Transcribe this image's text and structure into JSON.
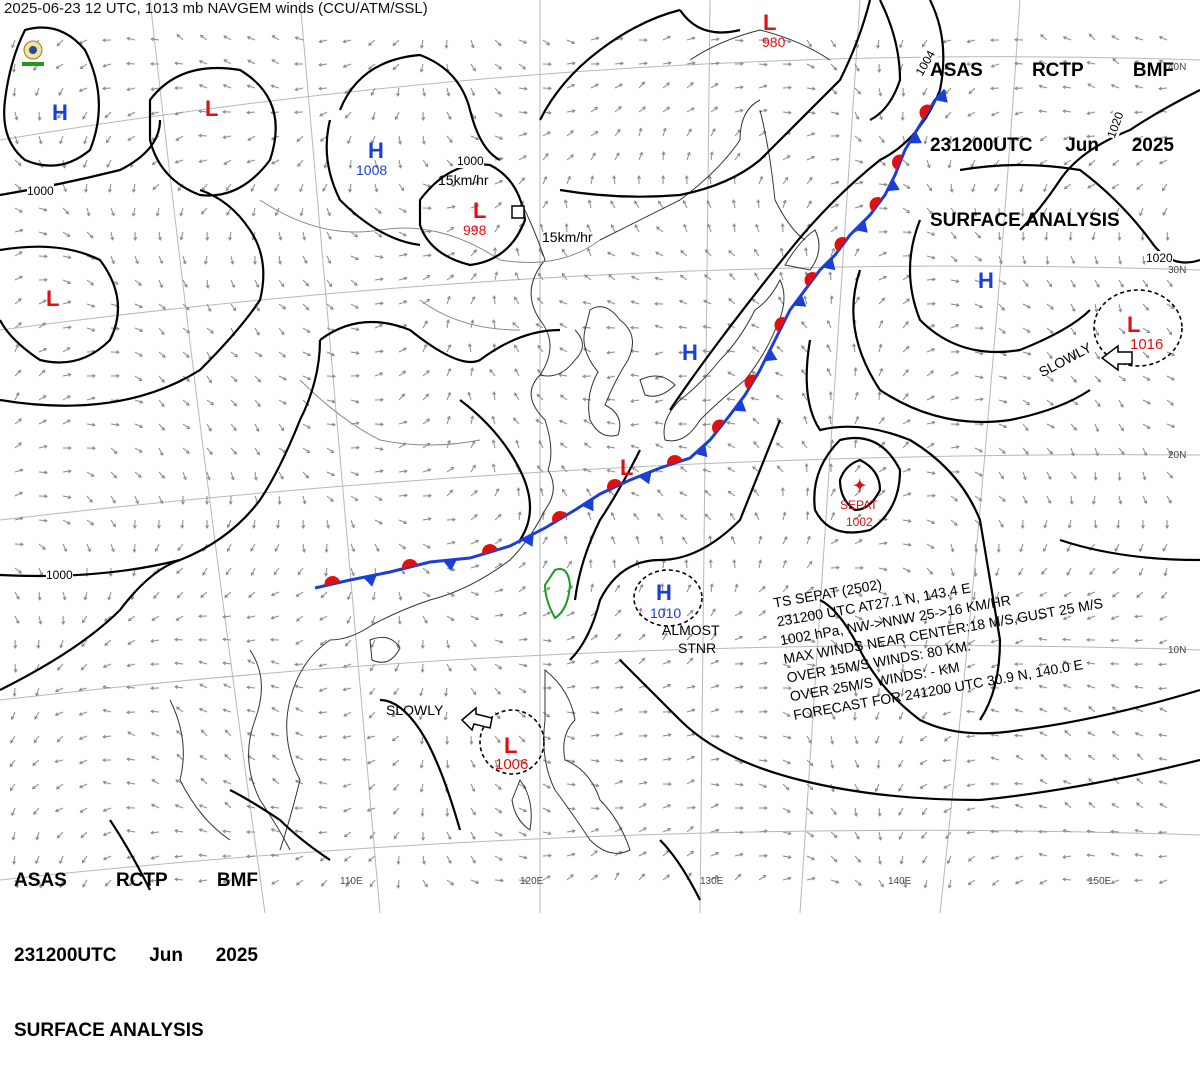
{
  "caption": "2025-06-23 12 UTC, 1013 mb NAVGEM winds (CCU/ATM/SSL)",
  "title_block": {
    "line1": [
      "ASAS",
      "RCTP",
      "BMF"
    ],
    "line2": [
      "231200UTC",
      "Jun",
      "2025"
    ],
    "line3": "SURFACE ANALYSIS"
  },
  "pressure_systems": [
    {
      "type": "H",
      "value": "",
      "color": "#1a3fd6"
    },
    {
      "type": "L",
      "value": "",
      "color": "#e01010"
    },
    {
      "type": "H",
      "value": "1008",
      "color": "#1a3fd6"
    },
    {
      "type": "L",
      "value": "998",
      "color": "#e01010"
    },
    {
      "type": "L",
      "value": "980",
      "color": "#e01010"
    },
    {
      "type": "L",
      "value": "",
      "color": "#e01010"
    },
    {
      "type": "H",
      "value": "",
      "color": "#1a3fd6"
    },
    {
      "type": "L",
      "value": "",
      "color": "#e01010"
    },
    {
      "type": "H",
      "value": "",
      "color": "#1a3fd6"
    },
    {
      "type": "L",
      "value": "1016",
      "color": "#e01010"
    },
    {
      "type": "H",
      "value": "1010",
      "color": "#1a3fd6"
    },
    {
      "type": "L",
      "value": "1006",
      "color": "#e01010"
    }
  ],
  "isobar_labels": [
    "1000",
    "1000",
    "1000",
    "1004",
    "1020",
    "1020"
  ],
  "storm": {
    "name": "SEPAT",
    "pressure": "1002",
    "info": [
      "TS  SEPAT  (2502)",
      "231200 UTC  AT27.1 N, 143.4 E",
      "1002 hPa, NW->NNW  25->16 KM/HR",
      "MAX WINDS NEAR CENTER:18 M/S,GUST 25 M/S",
      "OVER 15M/S WINDS: 80 KM.",
      "OVER 25M/S WINDS: - KM",
      "FORECAST FOR 241200 UTC 30.9 N, 140.0 E"
    ]
  },
  "motion_labels": {
    "low_mid": "15km/hr",
    "low_east": "15km/hr",
    "slowly_ne": "SLOWLY",
    "almost_stnr": [
      "ALMOST",
      "STNR"
    ],
    "slowly_sw": "SLOWLY"
  },
  "lon_labels": [
    "110E",
    "120E",
    "130E",
    "140E",
    "150E"
  ],
  "lat_labels": [
    "40N",
    "30N",
    "20N",
    "10N"
  ],
  "colors": {
    "high": "#1a3fd6",
    "low": "#e01010",
    "cold_front": "#1a3fd6",
    "warm_front": "#e01010",
    "isobar": "#000000",
    "coast": "#333333",
    "wind": "#8a8a8a",
    "taiwan": "#1e9a1e"
  }
}
